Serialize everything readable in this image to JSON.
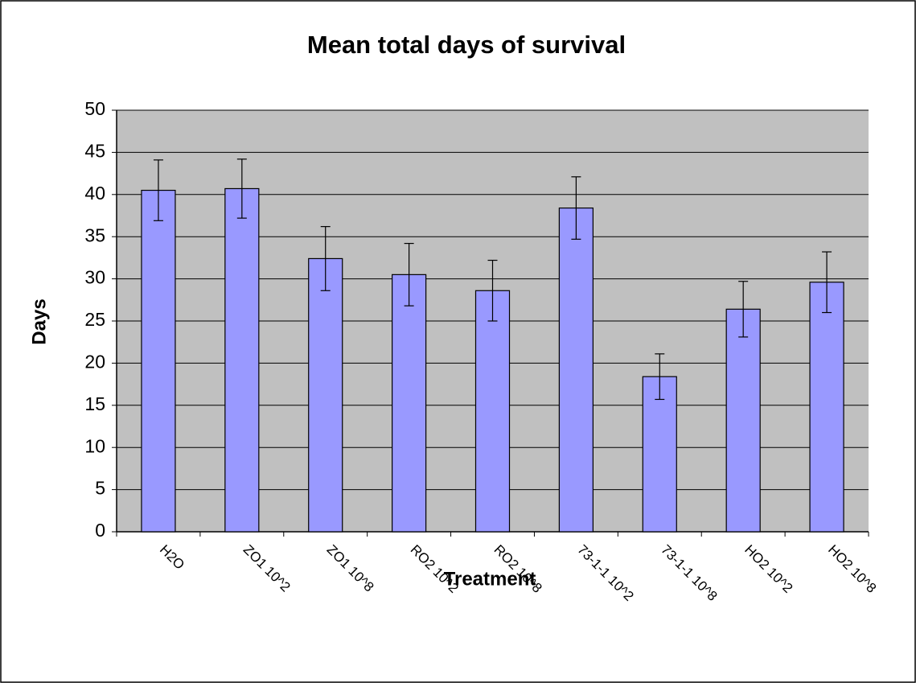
{
  "chart_data": {
    "type": "bar",
    "title": "Mean total days of survival",
    "x_label": "Treatment",
    "y_label": "Days",
    "categories": [
      "H2O",
      "ZO1 10^2",
      "ZO1 10^8",
      "RO2 10^2",
      "RO2 10^8",
      "73-1-1 10^2",
      "73-1-1 10^8",
      "HO2 10^2",
      "HO2 10^8"
    ],
    "series": [
      {
        "name": "Days",
        "color": "#9999ff",
        "values": [
          40.5,
          40.7,
          32.4,
          30.5,
          28.6,
          38.4,
          18.4,
          26.4,
          29.6
        ],
        "errors": [
          3.6,
          3.5,
          3.8,
          3.7,
          3.6,
          3.7,
          2.7,
          3.3,
          3.6
        ]
      }
    ],
    "ylim": [
      0,
      50
    ],
    "yticks": [
      0,
      5,
      10,
      15,
      20,
      25,
      30,
      35,
      40,
      45,
      50
    ],
    "grid": true
  }
}
